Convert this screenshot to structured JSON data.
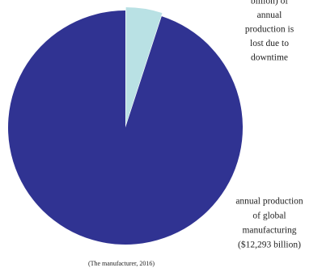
{
  "chart_data": {
    "type": "pie",
    "categories": [
      [
        "billion) of",
        "annual",
        "production is",
        "lost due to",
        "downtime"
      ],
      [
        "annual production",
        "of global",
        "manufacturing",
        "($12,293 billion)"
      ]
    ],
    "values": [
      647,
      12293
    ],
    "colors": [
      "#b9e1e4",
      "#303392"
    ],
    "source": "(The manufacturer, 2016)"
  }
}
